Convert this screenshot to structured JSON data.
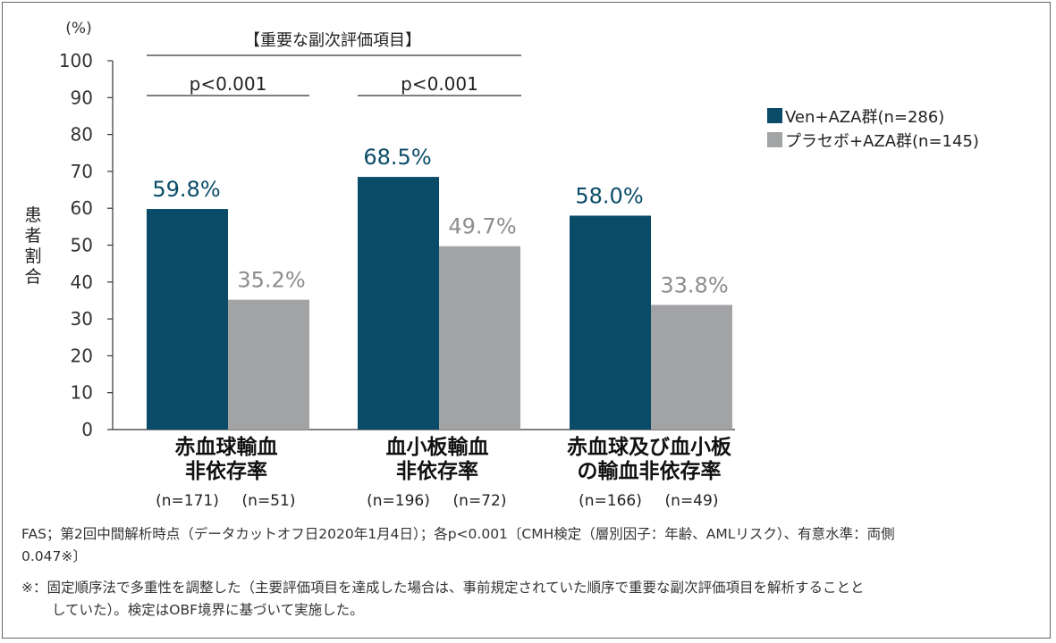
{
  "colors": {
    "series1": "#0a4c68",
    "series2": "#a2a3a5"
  },
  "chart_data": {
    "type": "bar",
    "yunit": "(%)",
    "ylabel": "患者割合",
    "ylim": [
      0,
      100
    ],
    "yticks": [
      0,
      10,
      20,
      30,
      40,
      50,
      60,
      70,
      80,
      90,
      100
    ],
    "categories": [
      {
        "line1": "赤血球輸血",
        "line2": "非依存率",
        "n1": "(n=171)",
        "n2": "(n=51)"
      },
      {
        "line1": "血小板輸血",
        "line2": "非依存率",
        "n1": "(n=196)",
        "n2": "(n=72)"
      },
      {
        "line1": "赤血球及び血小板",
        "line2": "の輸血非依存率",
        "n1": "(n=166)",
        "n2": "(n=49)"
      }
    ],
    "series": [
      {
        "name": "Ven+AZA群(n=286)",
        "values": [
          59.8,
          68.5,
          58.0
        ],
        "labels": [
          "59.8%",
          "68.5%",
          "58.0%"
        ]
      },
      {
        "name": "プラセボ+AZA群(n=145)",
        "values": [
          35.2,
          49.7,
          33.8
        ],
        "labels": [
          "35.2%",
          "49.7%",
          "33.8%"
        ]
      }
    ],
    "bracket_label": "【重要な副次評価項目】",
    "pvalues": [
      "p<0.001",
      "p<0.001"
    ]
  },
  "footnotes": {
    "line1": "FAS；第2回中間解析時点（データカットオフ日2020年1月4日）；各p<0.001〔CMH検定（層別因子：年齢、AMLリスク）、有意水準：両側",
    "line2": "0.047※〕",
    "line3": "※：固定順序法で多重性を調整した（主要評価項目を達成した場合は、事前規定されていた順序で重要な副次評価項目を解析することと",
    "line4": "していた）。検定はOBF境界に基づいて実施した。"
  }
}
